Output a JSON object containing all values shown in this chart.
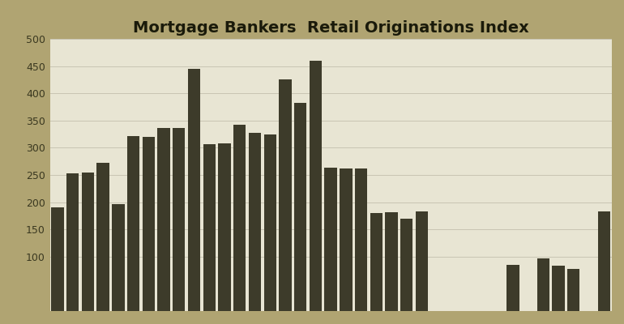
{
  "title": "Mortgage Bankers  Retail Originations Index",
  "values": [
    190,
    253,
    255,
    272,
    197,
    322,
    320,
    337,
    337,
    445,
    307,
    308,
    343,
    327,
    325,
    425,
    383,
    460,
    263,
    262,
    262,
    180,
    182,
    170,
    183,
    0,
    0,
    0,
    0,
    0,
    85,
    0,
    97,
    83,
    78,
    0,
    183
  ],
  "bar_color": "#3d3b2a",
  "background_outer": "#b0a472",
  "background_inner": "#e8e5d3",
  "grid_color": "#c9c5b2",
  "title_color": "#1a1a0a",
  "tick_color": "#3a3820",
  "ylim": [
    0,
    500
  ],
  "yticks": [
    100,
    150,
    200,
    250,
    300,
    350,
    400,
    450,
    500
  ],
  "title_fontsize": 14
}
